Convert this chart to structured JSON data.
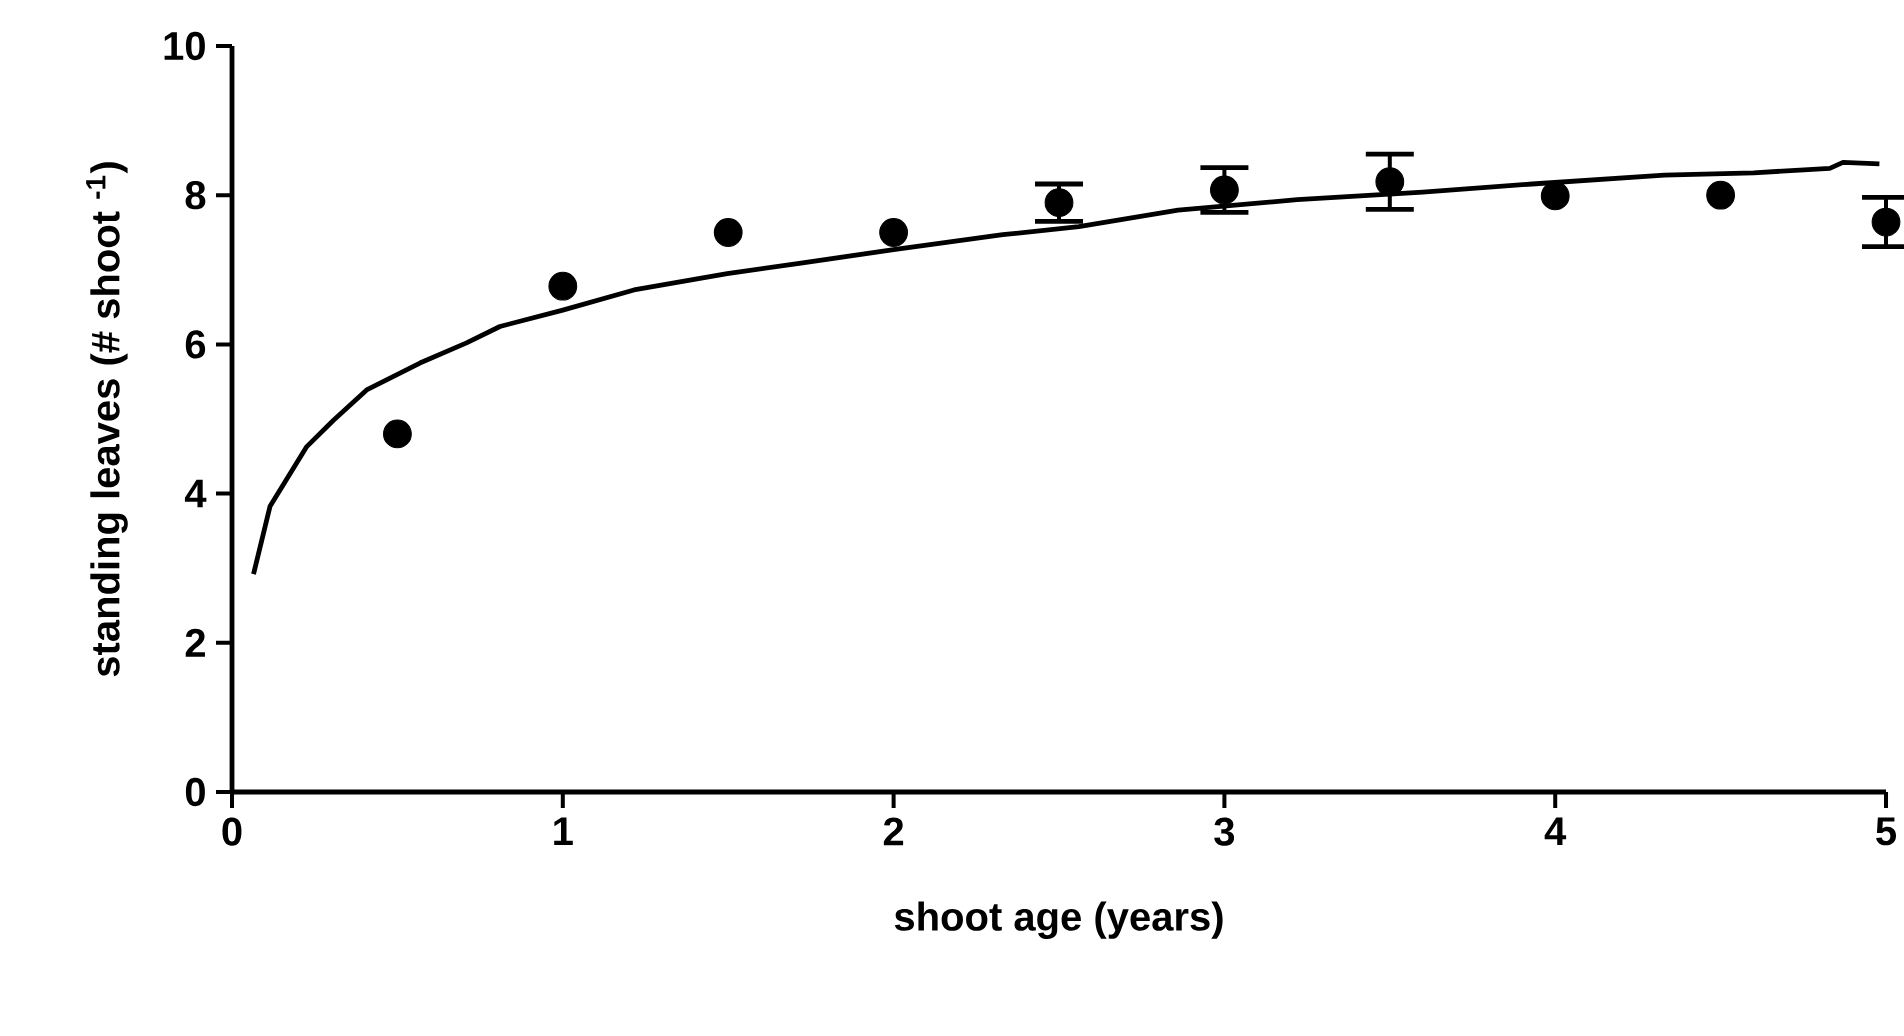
{
  "chart_data": {
    "type": "scatter",
    "xlabel": "shoot age (years)",
    "ylabel": "standing leaves (# shoot $^{-1}$)",
    "xlim": [
      0,
      5
    ],
    "ylim": [
      0,
      10
    ],
    "xticks": [
      0,
      1,
      2,
      3,
      4,
      5
    ],
    "yticks": [
      0,
      2,
      4,
      6,
      8,
      10
    ],
    "grid": false,
    "series": [
      {
        "marker": "circle",
        "color": "#000000",
        "x": [
          0.5,
          1.0,
          1.5,
          2.0,
          2.5,
          3.0,
          3.5,
          4.0,
          4.5,
          5.0
        ],
        "values": [
          4.8,
          6.78,
          7.5,
          7.5,
          7.9,
          8.07,
          8.18,
          7.99,
          8.0,
          7.64
        ],
        "errors": [
          null,
          null,
          null,
          null,
          0.25,
          0.3,
          0.37,
          null,
          null,
          0.33
        ]
      },
      {
        "type": "line",
        "marker": "none",
        "line_style": "solid",
        "color": "#000000",
        "x": [
          0.065,
          0.115,
          0.226,
          0.306,
          0.407,
          0.568,
          0.709,
          0.81,
          1.0,
          1.215,
          1.497,
          1.72,
          2.0,
          2.33,
          2.56,
          2.86,
          3.22,
          3.6,
          3.93,
          4.33,
          4.6,
          4.83,
          4.87,
          4.98
        ],
        "values": [
          2.92,
          3.83,
          4.63,
          4.98,
          5.39,
          5.75,
          6.02,
          6.24,
          6.46,
          6.73,
          6.95,
          7.09,
          7.27,
          7.47,
          7.58,
          7.8,
          7.94,
          8.04,
          8.15,
          8.27,
          8.3,
          8.36,
          8.44,
          8.42
        ]
      }
    ]
  }
}
